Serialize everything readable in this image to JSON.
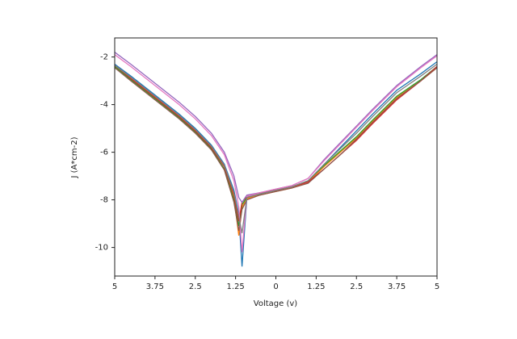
{
  "chart_data": {
    "type": "line",
    "xlabel": "Voltage (v)",
    "ylabel": "J (A*cm-2)",
    "x": [
      -5,
      -4.5,
      -3.75,
      -3,
      -2.5,
      -2,
      -1.6,
      -1.3,
      -1.15,
      -1.05,
      -0.9,
      -0.5,
      0,
      0.5,
      1,
      1.5,
      2,
      2.5,
      3,
      3.75,
      4.5,
      5
    ],
    "series": [
      {
        "color": "#1f77b4",
        "values": [
          -2.3,
          -2.8,
          -3.6,
          -4.4,
          -5.0,
          -5.7,
          -6.5,
          -7.6,
          -8.6,
          -10.8,
          -7.9,
          -7.75,
          -7.6,
          -7.45,
          -7.2,
          -6.5,
          -5.8,
          -5.1,
          -4.4,
          -3.4,
          -2.7,
          -2.2
        ]
      },
      {
        "color": "#ff7f0e",
        "values": [
          -2.4,
          -2.9,
          -3.7,
          -4.5,
          -5.1,
          -5.8,
          -6.6,
          -7.9,
          -9.5,
          -8.3,
          -7.95,
          -7.8,
          -7.65,
          -7.5,
          -7.25,
          -6.6,
          -6.0,
          -5.4,
          -4.7,
          -3.7,
          -3.0,
          -2.45
        ]
      },
      {
        "color": "#2ca02c",
        "values": [
          -2.4,
          -2.95,
          -3.75,
          -4.55,
          -5.15,
          -5.85,
          -6.7,
          -8.0,
          -9.1,
          -8.2,
          -7.9,
          -7.75,
          -7.6,
          -7.45,
          -7.2,
          -6.55,
          -5.95,
          -5.35,
          -4.65,
          -3.65,
          -2.95,
          -2.4
        ]
      },
      {
        "color": "#d62728",
        "values": [
          -2.35,
          -2.9,
          -3.7,
          -4.5,
          -5.1,
          -5.8,
          -6.6,
          -7.8,
          -8.9,
          -8.1,
          -7.85,
          -7.7,
          -7.6,
          -7.45,
          -7.25,
          -6.7,
          -6.1,
          -5.5,
          -4.8,
          -3.8,
          -3.0,
          -2.4
        ]
      },
      {
        "color": "#9467bd",
        "values": [
          -1.8,
          -2.3,
          -3.1,
          -3.9,
          -4.5,
          -5.2,
          -6.0,
          -7.0,
          -7.9,
          -8.1,
          -7.8,
          -7.7,
          -7.55,
          -7.4,
          -7.1,
          -6.3,
          -5.6,
          -4.9,
          -4.2,
          -3.2,
          -2.4,
          -1.9
        ]
      },
      {
        "color": "#8c564b",
        "values": [
          -2.45,
          -3.0,
          -3.8,
          -4.6,
          -5.2,
          -5.9,
          -6.75,
          -8.1,
          -9.3,
          -8.4,
          -8.0,
          -7.8,
          -7.65,
          -7.5,
          -7.3,
          -6.7,
          -6.1,
          -5.45,
          -4.75,
          -3.75,
          -3.0,
          -2.45
        ]
      },
      {
        "color": "#e377c2",
        "values": [
          -1.9,
          -2.4,
          -3.2,
          -4.0,
          -4.6,
          -5.3,
          -6.1,
          -7.2,
          -8.3,
          -10.2,
          -7.85,
          -7.7,
          -7.55,
          -7.4,
          -7.1,
          -6.35,
          -5.65,
          -4.95,
          -4.25,
          -3.25,
          -2.45,
          -1.95
        ]
      },
      {
        "color": "#7f7f7f",
        "values": [
          -2.35,
          -2.85,
          -3.65,
          -4.45,
          -5.05,
          -5.75,
          -6.55,
          -7.7,
          -8.7,
          -9.4,
          -7.9,
          -7.75,
          -7.6,
          -7.45,
          -7.2,
          -6.5,
          -5.85,
          -5.2,
          -4.5,
          -3.5,
          -2.8,
          -2.3
        ]
      }
    ],
    "xlim": [
      -5,
      5
    ],
    "xticks": [
      {
        "value": -5,
        "label": "5"
      },
      {
        "value": -3.75,
        "label": "3.75"
      },
      {
        "value": -2.5,
        "label": "2.5"
      },
      {
        "value": -1.25,
        "label": "1.25"
      },
      0,
      1.25,
      2.5,
      3.75,
      5
    ],
    "ylim": [
      -11.2,
      -1.2
    ],
    "yticks": [
      -10,
      -8,
      -6,
      -4,
      -2
    ]
  }
}
